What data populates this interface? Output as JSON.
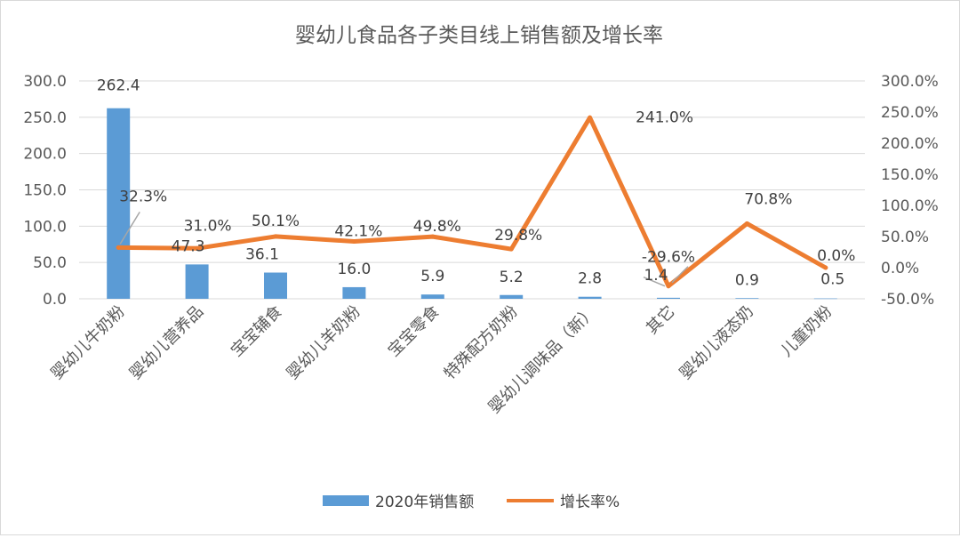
{
  "chart_data": {
    "type": "bar",
    "title": "婴幼儿食品各子类目线上销售额及增长率",
    "categories": [
      "婴幼儿牛奶粉",
      "婴幼儿营养品",
      "宝宝辅食",
      "婴幼儿羊奶粉",
      "宝宝零食",
      "特殊配方奶粉",
      "婴幼儿调味品（新）",
      "其它",
      "婴幼儿液态奶",
      "儿童奶粉"
    ],
    "series": [
      {
        "name": "2020年销售额",
        "type": "bar",
        "axis": "left",
        "color": "#5b9bd5",
        "values": [
          262.4,
          47.3,
          36.1,
          16.0,
          5.9,
          5.2,
          2.8,
          1.4,
          0.9,
          0.5
        ],
        "labels": [
          "262.4",
          "47.3",
          "36.1",
          "16.0",
          "5.9",
          "5.2",
          "2.8",
          "1.4",
          "0.9",
          "0.5"
        ]
      },
      {
        "name": "增长率%",
        "type": "line",
        "axis": "right",
        "color": "#ed7d31",
        "values": [
          32.3,
          31.0,
          50.1,
          42.1,
          49.8,
          29.8,
          241.0,
          -29.6,
          70.8,
          0.0
        ],
        "labels": [
          "32.3%",
          "31.0%",
          "50.1%",
          "42.1%",
          "49.8%",
          "29.8%",
          "241.0%",
          "-29.6%",
          "70.8%",
          "0.0%"
        ]
      }
    ],
    "y_left": {
      "min": 0,
      "max": 300,
      "step": 50,
      "ticks": [
        "0.0",
        "50.0",
        "100.0",
        "150.0",
        "200.0",
        "250.0",
        "300.0"
      ]
    },
    "y_right": {
      "min": -50,
      "max": 300,
      "step": 50,
      "ticks": [
        "-50.0%",
        "0.0%",
        "50.0%",
        "100.0%",
        "150.0%",
        "200.0%",
        "250.0%",
        "300.0%"
      ]
    },
    "grid": true,
    "legend": "bottom",
    "gridline_color": "#d9d9d9"
  }
}
